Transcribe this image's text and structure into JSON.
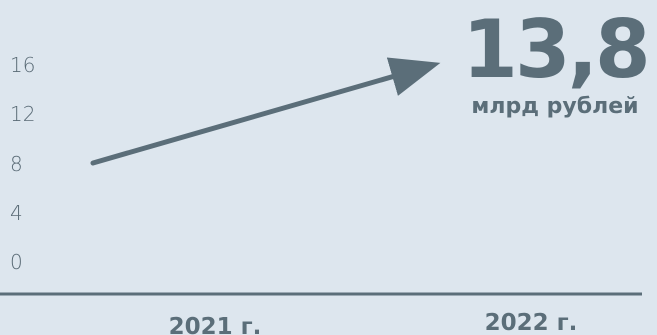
{
  "chart_data": {
    "type": "line",
    "categories": [
      "2021 г.",
      "2022 г."
    ],
    "series": [
      {
        "values": [
          8,
          16
        ]
      }
    ],
    "y_ticks": [
      "16",
      "12",
      "8",
      "4",
      "0"
    ],
    "ylim": [
      0,
      16
    ],
    "annotation": {
      "value": "13,8",
      "unit": "млрд рублей"
    },
    "grid": false,
    "colors": {
      "background": "#dde6ee",
      "line": "#5b6e79",
      "axis": "#5b6e79",
      "text": "#5b6e79"
    }
  }
}
